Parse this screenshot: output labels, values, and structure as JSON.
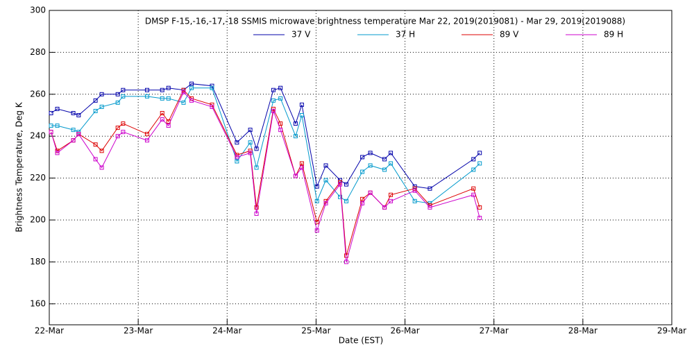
{
  "chart_data": {
    "type": "line",
    "title": "DMSP F-15,-16,-17,-18 SSMIS microwave brightness temperature Mar 22, 2019(2019081) - Mar 29, 2019(2019088)",
    "xlabel": "Date (EST)",
    "ylabel": "Brightness Temperature, Deg K",
    "x": [
      0.02,
      0.09,
      0.27,
      0.33,
      0.52,
      0.59,
      0.77,
      0.83,
      1.1,
      1.27,
      1.34,
      1.51,
      1.6,
      1.83,
      2.11,
      2.26,
      2.33,
      2.52,
      2.6,
      2.77,
      2.84,
      3.01,
      3.11,
      3.27,
      3.34,
      3.52,
      3.61,
      3.77,
      3.84,
      4.11,
      4.28,
      4.77,
      4.84
    ],
    "series": [
      {
        "name": "37 V",
        "color": "#0000aa",
        "values": [
          251,
          253,
          251,
          250,
          257,
          260,
          260,
          262,
          262,
          262,
          263,
          262,
          265,
          264,
          237,
          243,
          234,
          262,
          263,
          246,
          255,
          216,
          226,
          219,
          217,
          230,
          232,
          229,
          232,
          216,
          215,
          229,
          232
        ]
      },
      {
        "name": "37 H",
        "color": "#0099cc",
        "values": [
          245,
          245,
          243,
          242,
          252,
          254,
          256,
          259,
          259,
          258,
          258,
          256,
          263,
          263,
          228,
          237,
          225,
          257,
          258,
          240,
          250,
          209,
          219,
          211,
          209,
          223,
          226,
          224,
          227,
          209,
          208,
          224,
          227
        ]
      },
      {
        "name": "89 V",
        "color": "#dd0000",
        "values": [
          242,
          233,
          238,
          241,
          236,
          233,
          244,
          246,
          241,
          251,
          247,
          262,
          258,
          255,
          231,
          233,
          206,
          253,
          246,
          221,
          227,
          199,
          209,
          218,
          183,
          210,
          213,
          206,
          212,
          215,
          207,
          215,
          206
        ]
      },
      {
        "name": "89 H",
        "color": "#cc00cc",
        "values": [
          242,
          232,
          238,
          241,
          229,
          225,
          240,
          242,
          238,
          248,
          245,
          261,
          257,
          254,
          230,
          232,
          203,
          252,
          243,
          221,
          225,
          195,
          208,
          217,
          180,
          208,
          213,
          206,
          209,
          214,
          206,
          212,
          201
        ]
      }
    ],
    "xlim": [
      0,
      7
    ],
    "xticks": [
      {
        "value": 0,
        "label": "22-Mar"
      },
      {
        "value": 1,
        "label": "23-Mar"
      },
      {
        "value": 2,
        "label": "24-Mar"
      },
      {
        "value": 3,
        "label": "25-Mar"
      },
      {
        "value": 4,
        "label": "26-Mar"
      },
      {
        "value": 5,
        "label": "27-Mar"
      },
      {
        "value": 6,
        "label": "28-Mar"
      },
      {
        "value": 7,
        "label": "29-Mar"
      }
    ],
    "ylim": [
      150,
      300
    ],
    "yticks": [
      160,
      180,
      200,
      220,
      240,
      260,
      280,
      300
    ],
    "grid": true
  }
}
